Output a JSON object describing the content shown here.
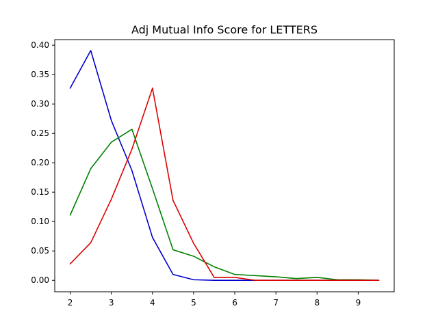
{
  "chart_data": {
    "type": "line",
    "title": "Adj Mutual Info Score for LETTERS",
    "xlabel": "",
    "ylabel": "",
    "xlim": [
      1.625,
      9.875
    ],
    "ylim": [
      -0.0195,
      0.4095
    ],
    "grid": false,
    "x": [
      2,
      2.5,
      3,
      3.5,
      4,
      4.5,
      5,
      5.5,
      6,
      6.5,
      7,
      7.5,
      8,
      8.5,
      9,
      9.5
    ],
    "xticks": [
      2,
      3,
      4,
      5,
      6,
      7,
      8,
      9
    ],
    "yticks": [
      0.0,
      0.05,
      0.1,
      0.15,
      0.2,
      0.25,
      0.3,
      0.35,
      0.4
    ],
    "series": [
      {
        "color": "#0000cc",
        "values": [
          0.327,
          0.391,
          0.272,
          0.187,
          0.073,
          0.01,
          0.001,
          0.0,
          0.0,
          0.0,
          0.0,
          0.0,
          0.0,
          0.0,
          0.0,
          0.0
        ]
      },
      {
        "color": "#008000",
        "values": [
          0.111,
          0.19,
          0.235,
          0.257,
          0.156,
          0.052,
          0.041,
          0.023,
          0.01,
          0.008,
          0.006,
          0.003,
          0.005,
          0.001,
          0.001,
          0.0
        ]
      },
      {
        "color": "#dd0000",
        "values": [
          0.028,
          0.064,
          0.138,
          0.223,
          0.327,
          0.136,
          0.063,
          0.005,
          0.005,
          0.0,
          0.0,
          0.0,
          0.0,
          0.0,
          0.0,
          0.0
        ]
      }
    ]
  }
}
